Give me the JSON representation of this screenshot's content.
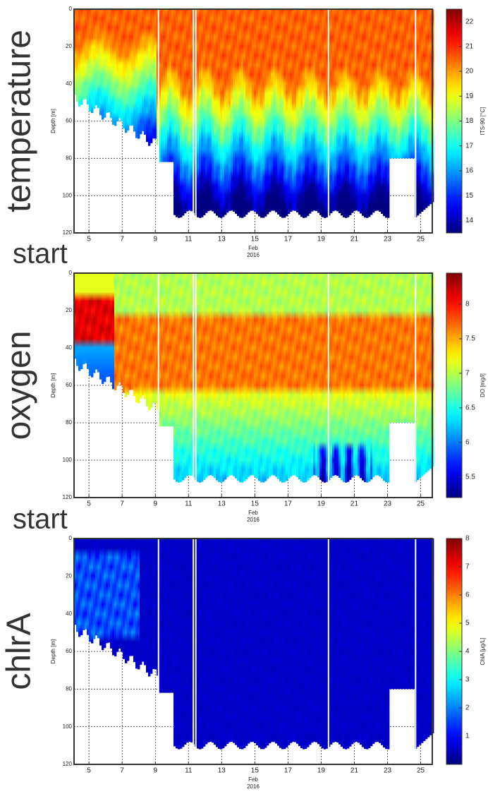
{
  "chart_data": [
    {
      "type": "heatmap",
      "panel_label": "temperature",
      "ylabel": "Depth [m]",
      "xlabel": "Feb",
      "xlabel2": "2016",
      "xlim": [
        4.1,
        25.7
      ],
      "xticks": [
        5,
        7,
        9,
        11,
        13,
        15,
        17,
        19,
        21,
        23,
        25
      ],
      "ylim": [
        0,
        120
      ],
      "yticks": [
        0,
        20,
        40,
        60,
        80,
        100,
        120
      ],
      "y_inverted": true,
      "grid": true,
      "colorbar": {
        "label": "ITS-90 [°C]",
        "lim": [
          13.5,
          22.5
        ],
        "ticks": [
          14,
          15,
          16,
          17,
          18,
          19,
          20,
          21,
          22
        ],
        "colormap": "jet"
      }
    },
    {
      "type": "heatmap",
      "panel_label": "oxygen",
      "ylabel": "Depth [m]",
      "xlabel": "Feb",
      "xlabel2": "2016",
      "xlim": [
        4.1,
        25.7
      ],
      "xticks": [
        5,
        7,
        9,
        11,
        13,
        15,
        17,
        19,
        21,
        23,
        25
      ],
      "ylim": [
        0,
        120
      ],
      "yticks": [
        0,
        20,
        40,
        60,
        80,
        100,
        120
      ],
      "y_inverted": true,
      "grid": true,
      "colorbar": {
        "label": "DO [mg/l]",
        "lim": [
          5.2,
          8.45
        ],
        "ticks": [
          5.5,
          6,
          6.5,
          7,
          7.5,
          8
        ],
        "colormap": "jet"
      }
    },
    {
      "type": "heatmap",
      "panel_label": "chlrA",
      "ylabel": "Depth [m]",
      "xlabel": "Feb",
      "xlabel2": "2016",
      "xlim": [
        4.1,
        25.7
      ],
      "xticks": [
        5,
        7,
        9,
        11,
        13,
        15,
        17,
        19,
        21,
        23,
        25
      ],
      "ylim": [
        0,
        120
      ],
      "yticks": [
        0,
        20,
        40,
        60,
        80,
        100,
        120
      ],
      "y_inverted": true,
      "grid": true,
      "colorbar": {
        "label": "ChlA [μg/L]",
        "lim": [
          0,
          8
        ],
        "ticks": [
          1,
          2,
          3,
          4,
          5,
          6,
          7,
          8
        ],
        "colormap": "jet"
      }
    }
  ],
  "annotations": [
    "start",
    "start"
  ]
}
